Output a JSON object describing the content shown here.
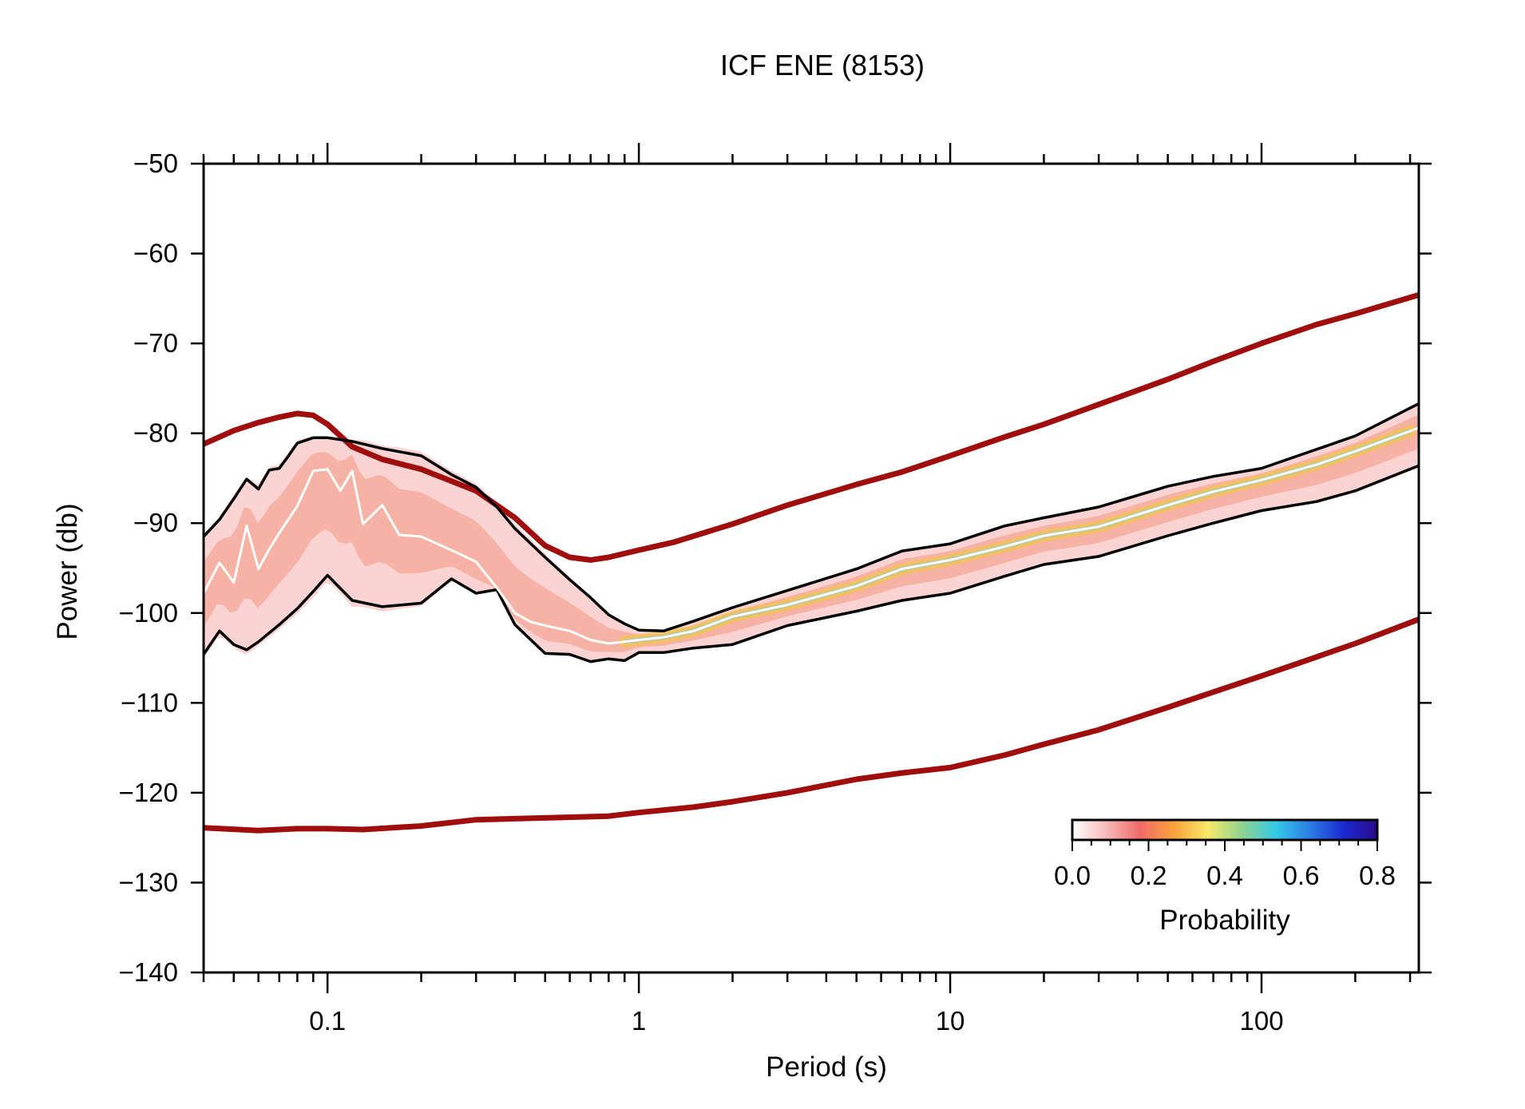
{
  "chart_data": {
    "type": "line",
    "title": "ICF ENE (8153)",
    "xlabel": "Period (s)",
    "ylabel": "Power (db)",
    "x_scale": "log",
    "xlim": [
      0.04,
      320
    ],
    "ylim": [
      -140,
      -50
    ],
    "x_ticks": [
      0.1,
      1,
      10,
      100
    ],
    "x_tick_labels": [
      "0.1",
      "1",
      "10",
      "100"
    ],
    "y_ticks": [
      -50,
      -60,
      -70,
      -80,
      -90,
      -100,
      -110,
      -120,
      -130,
      -140
    ],
    "y_tick_labels": [
      "−50",
      "−60",
      "−70",
      "−80",
      "−90",
      "−100",
      "−110",
      "−120",
      "−130",
      "−140"
    ],
    "grid": false,
    "colors": {
      "noise_model": "#a00d0d",
      "percentile": "#000000",
      "mode": "#ffffff",
      "pdf_low": "#f9c4c4",
      "pdf_mid": "#f08a6a",
      "pdf_high": "#f6c441"
    },
    "series": [
      {
        "name": "",
        "role": "noise-model-high",
        "x": [
          0.04,
          0.05,
          0.06,
          0.07,
          0.08,
          0.09,
          0.1,
          0.12,
          0.15,
          0.2,
          0.3,
          0.4,
          0.5,
          0.6,
          0.7,
          0.8,
          1,
          1.3,
          2,
          3,
          5,
          7,
          10,
          15,
          20,
          30,
          50,
          70,
          100,
          150,
          200,
          320
        ],
        "y": [
          -81.2,
          -79.7,
          -78.8,
          -78.2,
          -77.8,
          -78.0,
          -79.0,
          -81.5,
          -82.9,
          -84.0,
          -86.4,
          -89.4,
          -92.5,
          -93.8,
          -94.1,
          -93.8,
          -93.0,
          -92.1,
          -90.1,
          -88.0,
          -85.7,
          -84.3,
          -82.5,
          -80.4,
          -79.0,
          -76.8,
          -74.0,
          -72.0,
          -70.0,
          -67.9,
          -66.7,
          -64.6
        ]
      },
      {
        "name": "",
        "role": "noise-model-low",
        "x": [
          0.04,
          0.06,
          0.08,
          0.1,
          0.13,
          0.2,
          0.3,
          0.5,
          0.8,
          1,
          1.5,
          2,
          3,
          5,
          7,
          10,
          15,
          20,
          30,
          50,
          70,
          100,
          150,
          200,
          320
        ],
        "y": [
          -123.9,
          -124.2,
          -124.0,
          -124.0,
          -124.1,
          -123.7,
          -123.0,
          -122.8,
          -122.6,
          -122.2,
          -121.6,
          -121.0,
          -120.0,
          -118.5,
          -117.8,
          -117.2,
          -115.8,
          -114.6,
          -113.0,
          -110.5,
          -108.8,
          -107.0,
          -104.9,
          -103.4,
          -100.7
        ]
      },
      {
        "name": "",
        "role": "percentile-90",
        "x": [
          0.04,
          0.045,
          0.05,
          0.055,
          0.06,
          0.065,
          0.07,
          0.075,
          0.08,
          0.09,
          0.1,
          0.12,
          0.15,
          0.2,
          0.25,
          0.3,
          0.35,
          0.4,
          0.5,
          0.6,
          0.7,
          0.8,
          0.9,
          1,
          1.2,
          1.5,
          2,
          3,
          5,
          7,
          10,
          15,
          20,
          30,
          50,
          70,
          100,
          150,
          200,
          320
        ],
        "y": [
          -91.5,
          -89.6,
          -87.3,
          -85.1,
          -86.2,
          -84.1,
          -83.9,
          -82.5,
          -81.1,
          -80.5,
          -80.5,
          -80.9,
          -81.7,
          -82.5,
          -84.6,
          -86.0,
          -88.2,
          -90.6,
          -93.8,
          -96.3,
          -98.3,
          -100.2,
          -101.2,
          -101.9,
          -102.0,
          -100.9,
          -99.4,
          -97.5,
          -95.1,
          -93.1,
          -92.3,
          -90.3,
          -89.4,
          -88.2,
          -85.9,
          -84.8,
          -83.9,
          -81.8,
          -80.3,
          -76.7
        ]
      },
      {
        "name": "",
        "role": "percentile-10",
        "x": [
          0.04,
          0.045,
          0.05,
          0.055,
          0.06,
          0.07,
          0.08,
          0.09,
          0.1,
          0.12,
          0.15,
          0.2,
          0.25,
          0.3,
          0.35,
          0.4,
          0.5,
          0.6,
          0.7,
          0.8,
          0.9,
          1,
          1.2,
          1.5,
          2,
          3,
          5,
          7,
          10,
          15,
          20,
          30,
          50,
          70,
          100,
          150,
          200,
          320
        ],
        "y": [
          -104.6,
          -102.0,
          -103.5,
          -104.1,
          -103.2,
          -101.3,
          -99.5,
          -97.6,
          -95.8,
          -98.6,
          -99.3,
          -98.9,
          -96.2,
          -97.8,
          -97.4,
          -101.3,
          -104.5,
          -104.6,
          -105.4,
          -105.1,
          -105.3,
          -104.4,
          -104.4,
          -103.9,
          -103.5,
          -101.4,
          -99.8,
          -98.6,
          -97.8,
          -95.9,
          -94.6,
          -93.7,
          -91.4,
          -90.0,
          -88.6,
          -87.6,
          -86.4,
          -83.6
        ]
      },
      {
        "name": "",
        "role": "mode",
        "x": [
          0.04,
          0.045,
          0.05,
          0.055,
          0.06,
          0.065,
          0.07,
          0.08,
          0.09,
          0.1,
          0.11,
          0.12,
          0.13,
          0.15,
          0.17,
          0.2,
          0.25,
          0.3,
          0.35,
          0.4,
          0.45,
          0.5,
          0.6,
          0.7,
          0.8,
          0.9,
          1,
          1.2,
          1.5,
          2,
          3,
          5,
          7,
          10,
          15,
          20,
          30,
          50,
          70,
          100,
          150,
          200,
          320
        ],
        "y": [
          -97.8,
          -94.4,
          -96.6,
          -90.3,
          -95.1,
          -92.9,
          -91.1,
          -88.1,
          -84.2,
          -84.0,
          -86.4,
          -84.2,
          -90.1,
          -88.0,
          -91.3,
          -91.5,
          -93.0,
          -94.3,
          -97.2,
          -100.0,
          -101.0,
          -101.4,
          -102.0,
          -103.0,
          -103.4,
          -103.2,
          -103.0,
          -102.7,
          -102.0,
          -100.4,
          -99.1,
          -97.0,
          -95.1,
          -94.1,
          -92.6,
          -91.4,
          -90.4,
          -88.0,
          -86.5,
          -85.2,
          -83.5,
          -82.0,
          -79.4
        ]
      }
    ],
    "colorbar": {
      "label": "Probability",
      "range": [
        0.0,
        0.8
      ],
      "tick_labels": [
        "0.0",
        "0.2",
        "0.4",
        "0.6",
        "0.8"
      ],
      "colors": [
        "#ffffff",
        "#f7b9b9",
        "#f06a6a",
        "#f8a23a",
        "#f7e86a",
        "#8fd48f",
        "#33c9e6",
        "#2a7fe6",
        "#1a2ad0",
        "#2a0a8a"
      ]
    }
  }
}
